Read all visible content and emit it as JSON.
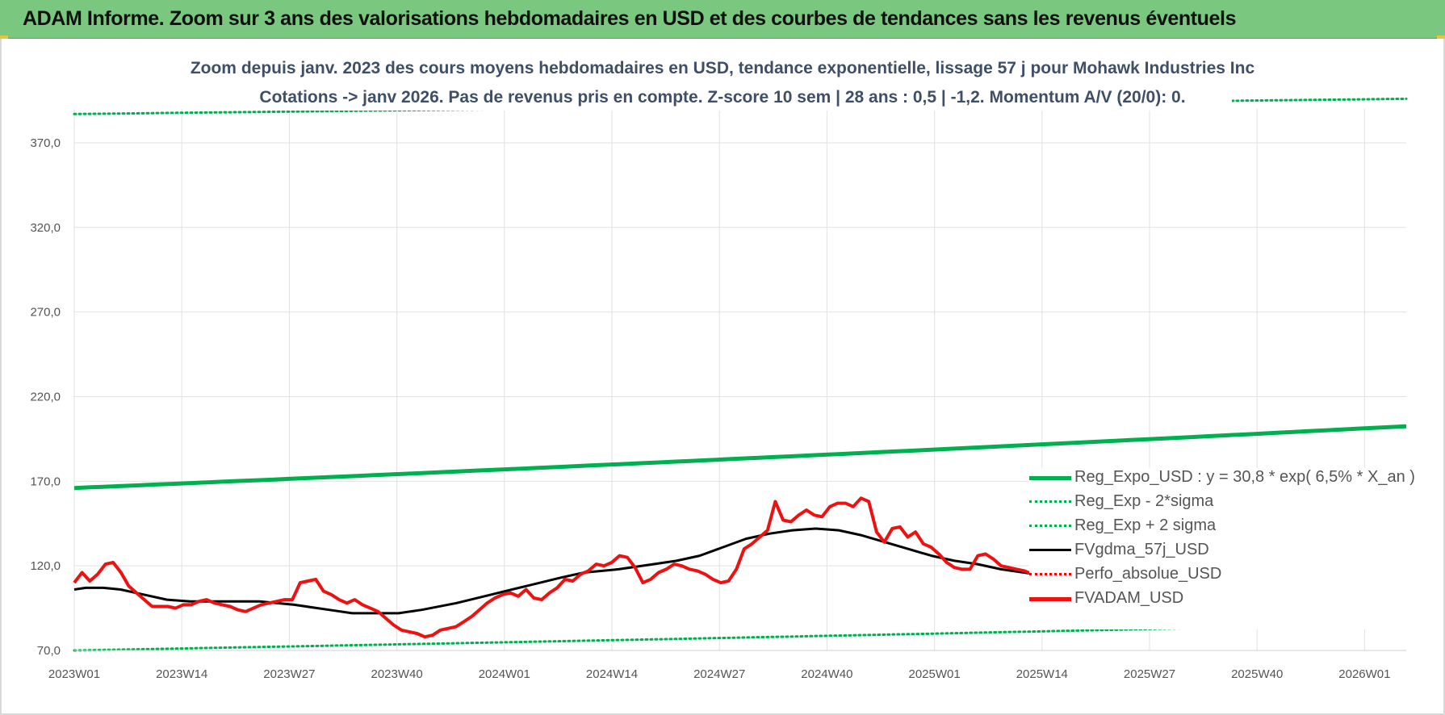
{
  "header": {
    "title": "ADAM Informe. Zoom sur 3 ans des valorisations hebdomadaires en USD et des courbes de tendances sans les revenus éventuels"
  },
  "chart_data": {
    "type": "line",
    "title_line1": "Zoom depuis janv. 2023 des cours moyens hebdomadaires en USD, tendance exponentielle, lissage 57 j pour Mohawk Industries Inc",
    "title_line2": "Cotations -> janv 2026. Pas de revenus pris en compte. Z-score 10 sem | 28 ans : 0,5 | -1,2. Momentum A/V (20/0): 0.",
    "ylim": [
      70,
      390
    ],
    "yticks": [
      "70,0",
      "120,0",
      "170,0",
      "220,0",
      "270,0",
      "320,0",
      "370,0"
    ],
    "xticks": [
      "2023W01",
      "2023W14",
      "2023W27",
      "2023W40",
      "2024W01",
      "2024W14",
      "2024W27",
      "2024W40",
      "2025W01",
      "2025W14",
      "2025W27",
      "2025W40",
      "2026W01"
    ],
    "grid": true,
    "legend_position": "bottom-right",
    "colors": {
      "trend": "#00b050",
      "band": "#00b050",
      "smooth": "#000000",
      "perf": "#ff0000",
      "price": "#ee1111",
      "grid": "#e2e2e2"
    },
    "legend": [
      {
        "key": "trend",
        "label": "Reg_Expo_USD : y = 30,8 * exp( 6,5% *  X_an )",
        "style": "solid-thick",
        "color": "#00b050"
      },
      {
        "key": "lower",
        "label": "Reg_Exp - 2*sigma",
        "style": "dotted",
        "color": "#00b050"
      },
      {
        "key": "upper",
        "label": "Reg_Exp + 2 sigma",
        "style": "dotted",
        "color": "#00b050"
      },
      {
        "key": "smooth",
        "label": "FVgdma_57j_USD",
        "style": "solid",
        "color": "#000000"
      },
      {
        "key": "perf",
        "label": "Perfo_absolue_USD",
        "style": "dotted",
        "color": "#ff0000"
      },
      {
        "key": "price",
        "label": "FVADAM_USD",
        "style": "solid-thick",
        "color": "#ee1111"
      }
    ],
    "weeks_total": 160,
    "series": {
      "trend": {
        "start": 166.0,
        "end": 202.5
      },
      "lower": {
        "start": 70.0,
        "end": 86.0
      },
      "upper": {
        "start": 387.0,
        "end": 396.0
      },
      "smooth": [
        [
          0,
          106
        ],
        [
          2,
          107
        ],
        [
          5,
          107
        ],
        [
          8,
          106
        ],
        [
          12,
          103
        ],
        [
          16,
          100
        ],
        [
          20,
          99
        ],
        [
          26,
          99
        ],
        [
          32,
          99
        ],
        [
          38,
          97
        ],
        [
          44,
          94
        ],
        [
          48,
          92
        ],
        [
          52,
          92
        ],
        [
          56,
          92
        ],
        [
          60,
          94
        ],
        [
          66,
          98
        ],
        [
          72,
          103
        ],
        [
          78,
          108
        ],
        [
          84,
          113
        ],
        [
          88,
          116
        ],
        [
          94,
          118
        ],
        [
          100,
          121
        ],
        [
          104,
          123
        ],
        [
          108,
          126
        ],
        [
          112,
          131
        ],
        [
          116,
          136
        ],
        [
          120,
          139
        ],
        [
          124,
          141
        ],
        [
          128,
          142
        ],
        [
          132,
          141
        ],
        [
          136,
          138
        ],
        [
          140,
          134
        ],
        [
          144,
          130
        ],
        [
          148,
          126
        ],
        [
          152,
          123
        ],
        [
          156,
          121
        ],
        [
          160,
          118
        ],
        [
          164,
          116
        ],
        [
          168,
          114
        ],
        [
          172,
          112
        ],
        [
          176,
          111
        ],
        [
          180,
          110
        ],
        [
          184,
          111
        ],
        [
          188,
          114
        ],
        [
          192,
          117
        ],
        [
          196,
          120
        ],
        [
          200,
          122
        ],
        [
          204,
          121
        ],
        [
          208,
          119
        ],
        [
          212,
          117
        ],
        [
          216,
          116
        ],
        [
          220,
          116
        ],
        [
          224,
          116
        ],
        [
          228,
          117
        ],
        [
          230,
          118
        ]
      ],
      "price": [
        [
          0,
          110
        ],
        [
          1,
          116
        ],
        [
          2,
          111
        ],
        [
          3,
          115
        ],
        [
          4,
          121
        ],
        [
          5,
          122
        ],
        [
          6,
          116
        ],
        [
          7,
          108
        ],
        [
          8,
          104
        ],
        [
          9,
          100
        ],
        [
          10,
          96
        ],
        [
          12,
          96
        ],
        [
          13,
          95
        ],
        [
          14,
          97
        ],
        [
          15,
          97
        ],
        [
          16,
          99
        ],
        [
          17,
          100
        ],
        [
          18,
          98
        ],
        [
          19,
          97
        ],
        [
          20,
          96
        ],
        [
          21,
          94
        ],
        [
          22,
          93
        ],
        [
          23,
          95
        ],
        [
          24,
          97
        ],
        [
          25,
          98
        ],
        [
          26,
          99
        ],
        [
          27,
          100
        ],
        [
          28,
          100
        ],
        [
          29,
          110
        ],
        [
          30,
          111
        ],
        [
          31,
          112
        ],
        [
          32,
          105
        ],
        [
          33,
          103
        ],
        [
          34,
          100
        ],
        [
          35,
          98
        ],
        [
          36,
          100
        ],
        [
          37,
          97
        ],
        [
          38,
          95
        ],
        [
          39,
          93
        ],
        [
          40,
          89
        ],
        [
          41,
          85
        ],
        [
          42,
          82
        ],
        [
          43,
          81
        ],
        [
          44,
          80
        ],
        [
          45,
          78
        ],
        [
          46,
          79
        ],
        [
          47,
          82
        ],
        [
          48,
          83
        ],
        [
          49,
          84
        ],
        [
          50,
          87
        ],
        [
          51,
          90
        ],
        [
          52,
          94
        ],
        [
          53,
          98
        ],
        [
          54,
          101
        ],
        [
          55,
          103
        ],
        [
          56,
          104
        ],
        [
          57,
          102
        ],
        [
          58,
          106
        ],
        [
          59,
          101
        ],
        [
          60,
          100
        ],
        [
          61,
          104
        ],
        [
          62,
          107
        ],
        [
          63,
          112
        ],
        [
          64,
          111
        ],
        [
          65,
          115
        ],
        [
          66,
          117
        ],
        [
          67,
          121
        ],
        [
          68,
          120
        ],
        [
          69,
          122
        ],
        [
          70,
          126
        ],
        [
          71,
          125
        ],
        [
          72,
          119
        ],
        [
          73,
          110
        ],
        [
          74,
          112
        ],
        [
          75,
          116
        ],
        [
          76,
          118
        ],
        [
          77,
          121
        ],
        [
          78,
          120
        ],
        [
          79,
          118
        ],
        [
          80,
          117
        ],
        [
          81,
          115
        ],
        [
          82,
          112
        ],
        [
          83,
          110
        ],
        [
          84,
          111
        ],
        [
          85,
          118
        ],
        [
          86,
          130
        ],
        [
          87,
          133
        ],
        [
          88,
          137
        ],
        [
          89,
          141
        ],
        [
          90,
          158
        ],
        [
          91,
          147
        ],
        [
          92,
          146
        ],
        [
          93,
          150
        ],
        [
          94,
          153
        ],
        [
          95,
          150
        ],
        [
          96,
          149
        ],
        [
          97,
          155
        ],
        [
          98,
          157
        ],
        [
          99,
          157
        ],
        [
          100,
          155
        ],
        [
          101,
          160
        ],
        [
          102,
          158
        ],
        [
          103,
          140
        ],
        [
          104,
          134
        ],
        [
          105,
          142
        ],
        [
          106,
          143
        ],
        [
          107,
          137
        ],
        [
          108,
          140
        ],
        [
          109,
          133
        ],
        [
          110,
          131
        ],
        [
          111,
          127
        ],
        [
          112,
          122
        ],
        [
          113,
          119
        ],
        [
          114,
          118
        ],
        [
          115,
          118
        ],
        [
          116,
          126
        ],
        [
          117,
          127
        ],
        [
          118,
          124
        ],
        [
          119,
          120
        ],
        [
          120,
          119
        ],
        [
          121,
          118
        ],
        [
          122,
          117
        ],
        [
          123,
          115
        ],
        [
          124,
          114
        ],
        [
          125,
          113
        ],
        [
          126,
          111
        ],
        [
          127,
          110
        ],
        [
          128,
          109
        ],
        [
          129,
          108
        ],
        [
          130,
          107
        ],
        [
          131,
          106
        ],
        [
          132,
          107
        ],
        [
          133,
          108
        ],
        [
          134,
          107
        ],
        [
          135,
          104
        ],
        [
          136,
          103
        ],
        [
          137,
          103
        ],
        [
          138,
          105
        ],
        [
          139,
          106
        ],
        [
          140,
          109
        ],
        [
          141,
          112
        ],
        [
          142,
          115
        ],
        [
          143,
          118
        ],
        [
          144,
          123
        ],
        [
          145,
          127
        ],
        [
          146,
          131
        ],
        [
          147,
          133
        ],
        [
          148,
          135
        ],
        [
          149,
          133
        ],
        [
          150,
          131
        ],
        [
          151,
          127
        ],
        [
          152,
          126
        ],
        [
          153,
          127
        ],
        [
          154,
          123
        ],
        [
          155,
          118
        ],
        [
          156,
          113
        ],
        [
          157,
          110
        ],
        [
          158,
          111
        ],
        [
          159,
          112
        ],
        [
          160,
          113
        ],
        [
          161,
          114
        ],
        [
          162,
          113
        ],
        [
          163,
          111
        ],
        [
          164,
          110
        ],
        [
          165,
          110
        ],
        [
          166,
          112
        ],
        [
          167,
          116
        ],
        [
          168,
          118
        ],
        [
          169,
          120
        ],
        [
          170,
          122
        ],
        [
          171,
          119
        ]
      ]
    }
  }
}
